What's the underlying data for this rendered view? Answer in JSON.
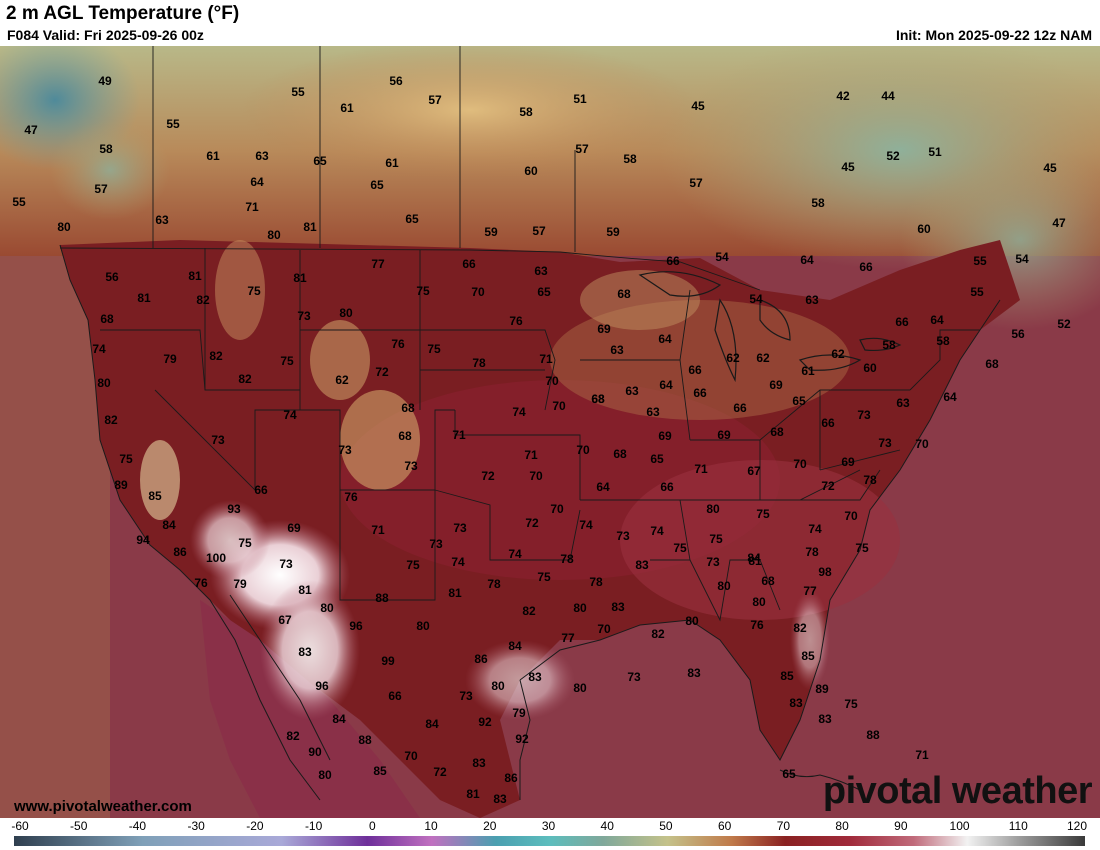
{
  "header": {
    "title": "2 m AGL Temperature (°F)",
    "valid": "F084 Valid: Fri 2025-09-26 00z",
    "init": "Init: Mon 2025-09-22 12z NAM"
  },
  "watermark": {
    "url": "www.pivotalweather.com",
    "logo": "pivotal weather"
  },
  "colorbar": {
    "ticks": [
      "-60",
      "-50",
      "-40",
      "-30",
      "-20",
      "-10",
      "0",
      "10",
      "20",
      "30",
      "40",
      "50",
      "60",
      "70",
      "80",
      "90",
      "100",
      "110",
      "120"
    ],
    "stops": [
      {
        "value": -60,
        "color": "#2f3f4f"
      },
      {
        "value": -40,
        "color": "#7fa0b8"
      },
      {
        "value": -20,
        "color": "#a9a9d8"
      },
      {
        "value": 0,
        "color": "#6e2f9a"
      },
      {
        "value": 20,
        "color": "#4a9fb0"
      },
      {
        "value": 30,
        "color": "#5cbdbd"
      },
      {
        "value": 40,
        "color": "#7fa89a"
      },
      {
        "value": 50,
        "color": "#c4c28a"
      },
      {
        "value": 60,
        "color": "#c07a4a"
      },
      {
        "value": 70,
        "color": "#8a2222"
      },
      {
        "value": 80,
        "color": "#a02a3a"
      },
      {
        "value": 90,
        "color": "#c06a7a"
      },
      {
        "value": 100,
        "color": "#f2f2f2"
      },
      {
        "value": 110,
        "color": "#9a9a9a"
      },
      {
        "value": 120,
        "color": "#3a3a3a"
      }
    ]
  },
  "colors": {
    "ocean": "#8a3a48",
    "canada": "#a88a6a",
    "conus": "#7a1e22",
    "desert_hot": "#eadfe0",
    "borders": "#1a1a1a"
  },
  "station_values": [
    {
      "id": "s1",
      "t": "49"
    },
    {
      "id": "s2",
      "t": "47"
    },
    {
      "id": "s3",
      "t": "55"
    },
    {
      "id": "s4",
      "t": "55"
    },
    {
      "id": "s5",
      "t": "58"
    },
    {
      "id": "s6",
      "t": "57"
    },
    {
      "id": "s7",
      "t": "61"
    },
    {
      "id": "s8",
      "t": "63"
    },
    {
      "id": "s9",
      "t": "65"
    },
    {
      "id": "s10",
      "t": "56"
    },
    {
      "id": "s11",
      "t": "57"
    },
    {
      "id": "s12",
      "t": "61"
    },
    {
      "id": "s13",
      "t": "58"
    },
    {
      "id": "s14",
      "t": "51"
    },
    {
      "id": "s15",
      "t": "45"
    },
    {
      "id": "s16",
      "t": "42"
    },
    {
      "id": "s17",
      "t": "44"
    },
    {
      "id": "s18",
      "t": "55"
    },
    {
      "id": "s19",
      "t": "57"
    },
    {
      "id": "s20",
      "t": "58"
    },
    {
      "id": "s21",
      "t": "52"
    },
    {
      "id": "s22",
      "t": "51"
    },
    {
      "id": "s23",
      "t": "45"
    },
    {
      "id": "s24",
      "t": "45"
    },
    {
      "id": "s25",
      "t": "64"
    },
    {
      "id": "s26",
      "t": "65"
    },
    {
      "id": "s27",
      "t": "61"
    },
    {
      "id": "s28",
      "t": "60"
    },
    {
      "id": "s29",
      "t": "57"
    },
    {
      "id": "s30",
      "t": "63"
    },
    {
      "id": "s31",
      "t": "71"
    },
    {
      "id": "s32",
      "t": "65"
    },
    {
      "id": "s33",
      "t": "58"
    },
    {
      "id": "s34",
      "t": "60"
    },
    {
      "id": "s35",
      "t": "47"
    },
    {
      "id": "s36",
      "t": "80"
    },
    {
      "id": "s37",
      "t": "80"
    },
    {
      "id": "s38",
      "t": "59"
    },
    {
      "id": "s39",
      "t": "57"
    },
    {
      "id": "s40",
      "t": "59"
    },
    {
      "id": "s41",
      "t": "56"
    },
    {
      "id": "s42",
      "t": "81"
    },
    {
      "id": "s43",
      "t": "77"
    },
    {
      "id": "s44",
      "t": "66"
    },
    {
      "id": "s45",
      "t": "63"
    },
    {
      "id": "s46",
      "t": "66"
    },
    {
      "id": "s47",
      "t": "54"
    },
    {
      "id": "s48",
      "t": "64"
    },
    {
      "id": "s49",
      "t": "66"
    },
    {
      "id": "s50",
      "t": "55"
    },
    {
      "id": "s51",
      "t": "54"
    },
    {
      "id": "s52",
      "t": "81"
    },
    {
      "id": "s53",
      "t": "75"
    },
    {
      "id": "s54",
      "t": "81"
    },
    {
      "id": "s55",
      "t": "75"
    },
    {
      "id": "s56",
      "t": "70"
    },
    {
      "id": "s57",
      "t": "65"
    },
    {
      "id": "s58",
      "t": "68"
    },
    {
      "id": "s59",
      "t": "54"
    },
    {
      "id": "s60",
      "t": "63"
    },
    {
      "id": "s61",
      "t": "55"
    },
    {
      "id": "s62",
      "t": "81"
    },
    {
      "id": "s63",
      "t": "82"
    },
    {
      "id": "s64",
      "t": "68"
    },
    {
      "id": "s65",
      "t": "73"
    },
    {
      "id": "s66",
      "t": "80"
    },
    {
      "id": "s67",
      "t": "76"
    },
    {
      "id": "s68",
      "t": "69"
    },
    {
      "id": "s69",
      "t": "66"
    },
    {
      "id": "s70",
      "t": "64"
    },
    {
      "id": "s71",
      "t": "56"
    },
    {
      "id": "s72",
      "t": "52"
    },
    {
      "id": "s73",
      "t": "74"
    },
    {
      "id": "s74",
      "t": "79"
    },
    {
      "id": "s75",
      "t": "82"
    },
    {
      "id": "s76",
      "t": "75"
    },
    {
      "id": "s77",
      "t": "76"
    },
    {
      "id": "s78",
      "t": "75"
    },
    {
      "id": "s79",
      "t": "78"
    },
    {
      "id": "s80",
      "t": "71"
    },
    {
      "id": "s81",
      "t": "63"
    },
    {
      "id": "s82",
      "t": "64"
    },
    {
      "id": "s83",
      "t": "62"
    },
    {
      "id": "s84",
      "t": "62"
    },
    {
      "id": "s85",
      "t": "58"
    },
    {
      "id": "s86",
      "t": "58"
    },
    {
      "id": "s87",
      "t": "80"
    },
    {
      "id": "s88",
      "t": "82"
    },
    {
      "id": "s89",
      "t": "62"
    },
    {
      "id": "s90",
      "t": "72"
    },
    {
      "id": "s91",
      "t": "70"
    },
    {
      "id": "s92",
      "t": "68"
    },
    {
      "id": "s93",
      "t": "63"
    },
    {
      "id": "s94",
      "t": "64"
    },
    {
      "id": "s95",
      "t": "66"
    },
    {
      "id": "s96",
      "t": "62"
    },
    {
      "id": "s97",
      "t": "61"
    },
    {
      "id": "s98",
      "t": "60"
    },
    {
      "id": "s99",
      "t": "68"
    },
    {
      "id": "s100",
      "t": "82"
    },
    {
      "id": "s101",
      "t": "74"
    },
    {
      "id": "s102",
      "t": "68"
    },
    {
      "id": "s103",
      "t": "74"
    },
    {
      "id": "s104",
      "t": "70"
    },
    {
      "id": "s105",
      "t": "68"
    },
    {
      "id": "s106",
      "t": "63"
    },
    {
      "id": "s107",
      "t": "66"
    },
    {
      "id": "s108",
      "t": "66"
    },
    {
      "id": "s109",
      "t": "65"
    },
    {
      "id": "s110",
      "t": "66"
    },
    {
      "id": "s111",
      "t": "63"
    },
    {
      "id": "s112",
      "t": "64"
    },
    {
      "id": "s113",
      "t": "69"
    },
    {
      "id": "s114",
      "t": "73"
    },
    {
      "id": "s115",
      "t": "68"
    },
    {
      "id": "s116",
      "t": "71"
    },
    {
      "id": "s117",
      "t": "70"
    },
    {
      "id": "s118",
      "t": "69"
    },
    {
      "id": "s119",
      "t": "69"
    },
    {
      "id": "s120",
      "t": "68"
    },
    {
      "id": "s121",
      "t": "73"
    },
    {
      "id": "s122",
      "t": "75"
    },
    {
      "id": "s123",
      "t": "89"
    },
    {
      "id": "s124",
      "t": "73"
    },
    {
      "id": "s125",
      "t": "73"
    },
    {
      "id": "s126",
      "t": "72"
    },
    {
      "id": "s127",
      "t": "71"
    },
    {
      "id": "s128",
      "t": "70"
    },
    {
      "id": "s129",
      "t": "68"
    },
    {
      "id": "s130",
      "t": "65"
    },
    {
      "id": "s131",
      "t": "71"
    },
    {
      "id": "s132",
      "t": "67"
    },
    {
      "id": "s133",
      "t": "70"
    },
    {
      "id": "s134",
      "t": "69"
    },
    {
      "id": "s135",
      "t": "73"
    },
    {
      "id": "s136",
      "t": "70"
    },
    {
      "id": "s137",
      "t": "85"
    },
    {
      "id": "s138",
      "t": "66"
    },
    {
      "id": "s139",
      "t": "76"
    },
    {
      "id": "s140",
      "t": "64"
    },
    {
      "id": "s141",
      "t": "66"
    },
    {
      "id": "s142",
      "t": "72"
    },
    {
      "id": "s143",
      "t": "78"
    },
    {
      "id": "s144",
      "t": "84"
    },
    {
      "id": "s145",
      "t": "93"
    },
    {
      "id": "s146",
      "t": "69"
    },
    {
      "id": "s147",
      "t": "70"
    },
    {
      "id": "s148",
      "t": "72"
    },
    {
      "id": "s149",
      "t": "74"
    },
    {
      "id": "s150",
      "t": "74"
    },
    {
      "id": "s151",
      "t": "73"
    },
    {
      "id": "s152",
      "t": "80"
    },
    {
      "id": "s153",
      "t": "70"
    },
    {
      "id": "s154",
      "t": "75"
    },
    {
      "id": "s155",
      "t": "94"
    },
    {
      "id": "s156",
      "t": "75"
    },
    {
      "id": "s157",
      "t": "71"
    },
    {
      "id": "s158",
      "t": "73"
    },
    {
      "id": "s159",
      "t": "74"
    },
    {
      "id": "s160",
      "t": "73"
    },
    {
      "id": "s161",
      "t": "74"
    },
    {
      "id": "s162",
      "t": "78"
    },
    {
      "id": "s163",
      "t": "75"
    },
    {
      "id": "s164",
      "t": "75"
    },
    {
      "id": "s165",
      "t": "84"
    },
    {
      "id": "s166",
      "t": "78"
    },
    {
      "id": "s167",
      "t": "75"
    },
    {
      "id": "s168",
      "t": "86"
    },
    {
      "id": "s169",
      "t": "100"
    },
    {
      "id": "s170",
      "t": "73"
    },
    {
      "id": "s171",
      "t": "75"
    },
    {
      "id": "s172",
      "t": "74"
    },
    {
      "id": "s173",
      "t": "73"
    },
    {
      "id": "s174",
      "t": "81"
    },
    {
      "id": "s175",
      "t": "75"
    },
    {
      "id": "s176",
      "t": "78"
    },
    {
      "id": "s177",
      "t": "83"
    },
    {
      "id": "s178",
      "t": "80"
    },
    {
      "id": "s179",
      "t": "68"
    },
    {
      "id": "s180",
      "t": "98"
    },
    {
      "id": "s181",
      "t": "76"
    },
    {
      "id": "s182",
      "t": "79"
    },
    {
      "id": "s183",
      "t": "81"
    },
    {
      "id": "s184",
      "t": "81"
    },
    {
      "id": "s185",
      "t": "78"
    },
    {
      "id": "s186",
      "t": "88"
    },
    {
      "id": "s187",
      "t": "80"
    },
    {
      "id": "s188",
      "t": "77"
    },
    {
      "id": "s189",
      "t": "82"
    },
    {
      "id": "s190",
      "t": "80"
    },
    {
      "id": "s191",
      "t": "83"
    },
    {
      "id": "s192",
      "t": "80"
    },
    {
      "id": "s193",
      "t": "67"
    },
    {
      "id": "s194",
      "t": "96"
    },
    {
      "id": "s195",
      "t": "80"
    },
    {
      "id": "s196",
      "t": "77"
    },
    {
      "id": "s197",
      "t": "70"
    },
    {
      "id": "s198",
      "t": "82"
    },
    {
      "id": "s199",
      "t": "80"
    },
    {
      "id": "s200",
      "t": "76"
    },
    {
      "id": "s201",
      "t": "82"
    },
    {
      "id": "s202",
      "t": "83"
    },
    {
      "id": "s203",
      "t": "84"
    },
    {
      "id": "s204",
      "t": "99"
    },
    {
      "id": "s205",
      "t": "86"
    },
    {
      "id": "s206",
      "t": "85"
    },
    {
      "id": "s207",
      "t": "80"
    },
    {
      "id": "s208",
      "t": "73"
    },
    {
      "id": "s209",
      "t": "83"
    },
    {
      "id": "s210",
      "t": "83"
    },
    {
      "id": "s211",
      "t": "80"
    },
    {
      "id": "s212",
      "t": "85"
    },
    {
      "id": "s213",
      "t": "96"
    },
    {
      "id": "s214",
      "t": "66"
    },
    {
      "id": "s215",
      "t": "73"
    },
    {
      "id": "s216",
      "t": "89"
    },
    {
      "id": "s217",
      "t": "84"
    },
    {
      "id": "s218",
      "t": "79"
    },
    {
      "id": "s219",
      "t": "92"
    },
    {
      "id": "s220",
      "t": "83"
    },
    {
      "id": "s221",
      "t": "75"
    },
    {
      "id": "s222",
      "t": "84"
    },
    {
      "id": "s223",
      "t": "83"
    },
    {
      "id": "s224",
      "t": "82"
    },
    {
      "id": "s225",
      "t": "92"
    },
    {
      "id": "s226",
      "t": "88"
    },
    {
      "id": "s227",
      "t": "88"
    },
    {
      "id": "s228",
      "t": "90"
    },
    {
      "id": "s229",
      "t": "70"
    },
    {
      "id": "s230",
      "t": "71"
    },
    {
      "id": "s231",
      "t": "83"
    },
    {
      "id": "s232",
      "t": "85"
    },
    {
      "id": "s233",
      "t": "72"
    },
    {
      "id": "s234",
      "t": "80"
    },
    {
      "id": "s235",
      "t": "86"
    },
    {
      "id": "s236",
      "t": "65"
    },
    {
      "id": "s237",
      "t": "81"
    },
    {
      "id": "s238",
      "t": "83"
    }
  ]
}
